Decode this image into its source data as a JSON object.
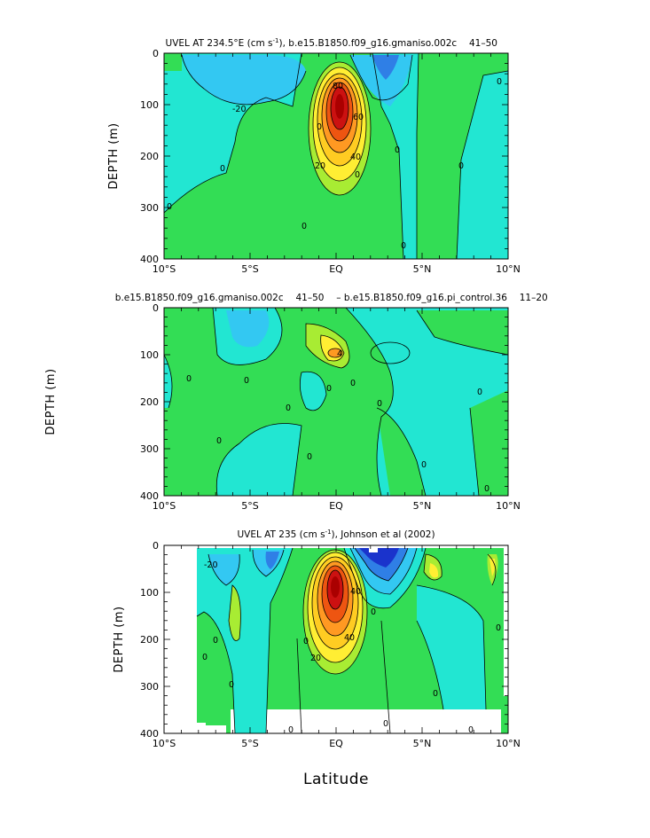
{
  "colors": {
    "deep_blue": "#1a33cc",
    "blue": "#2f7fe6",
    "light_blue": "#33c8f2",
    "cyan": "#22e6d2",
    "green": "#33dd55",
    "yellow_green": "#a8ec33",
    "yellow": "#ffee33",
    "orange": "#ff9922",
    "dark_orange": "#ee5511",
    "red": "#cc1111"
  },
  "chart_data": [
    {
      "type": "contour",
      "title": "UVEL AT 234.5°E (cm s",
      "title_sup": "-1",
      "title_rest": "), b.e15.B1850.f09_g16.gmaniso.002c 　41–50　",
      "ylabel": "DEPTH (m)",
      "xlabel": "",
      "x_ticks": [
        "10°S",
        "5°S",
        "EQ",
        "5°N",
        "10°N"
      ],
      "y_ticks": [
        "0",
        "100",
        "200",
        "300",
        "400"
      ],
      "xlim": [
        -10,
        10
      ],
      "ylim": [
        400,
        0
      ],
      "contour_labels": [
        "-20",
        "0",
        "20",
        "40",
        "60",
        "80",
        "0",
        "0",
        "0",
        "0",
        "0",
        "0",
        "0",
        "0"
      ]
    },
    {
      "type": "contour",
      "title": "b.e15.B1850.f09_g16.gmaniso.002c 　41–50　 – b.e15.B1850.f09_g16.pi_control.36 　11–20　",
      "ylabel": "DEPTH (m)",
      "xlabel": "",
      "x_ticks": [
        "10°S",
        "5°S",
        "EQ",
        "5°N",
        "10°N"
      ],
      "y_ticks": [
        "0",
        "100",
        "200",
        "300",
        "400"
      ],
      "xlim": [
        -10,
        10
      ],
      "ylim": [
        400,
        0
      ],
      "contour_labels": [
        "0",
        "0",
        "4",
        "0",
        "0",
        "0",
        "0",
        "0",
        "0",
        "0",
        "0",
        "0"
      ]
    },
    {
      "type": "contour",
      "title": "UVEL AT 235 (cm s",
      "title_sup": "-1",
      "title_rest": "), Johnson et al (2002)",
      "ylabel": "DEPTH (m)",
      "xlabel": "Latitude",
      "x_ticks": [
        "10°S",
        "5°S",
        "EQ",
        "5°N",
        "10°N"
      ],
      "y_ticks": [
        "0",
        "100",
        "200",
        "300",
        "400"
      ],
      "xlim": [
        -10,
        10
      ],
      "ylim": [
        400,
        0
      ],
      "contour_labels": [
        "-20",
        "20",
        "40",
        "40",
        "0",
        "0",
        "0",
        "0",
        "0",
        "0",
        "0",
        "0",
        "0",
        "0"
      ]
    }
  ]
}
